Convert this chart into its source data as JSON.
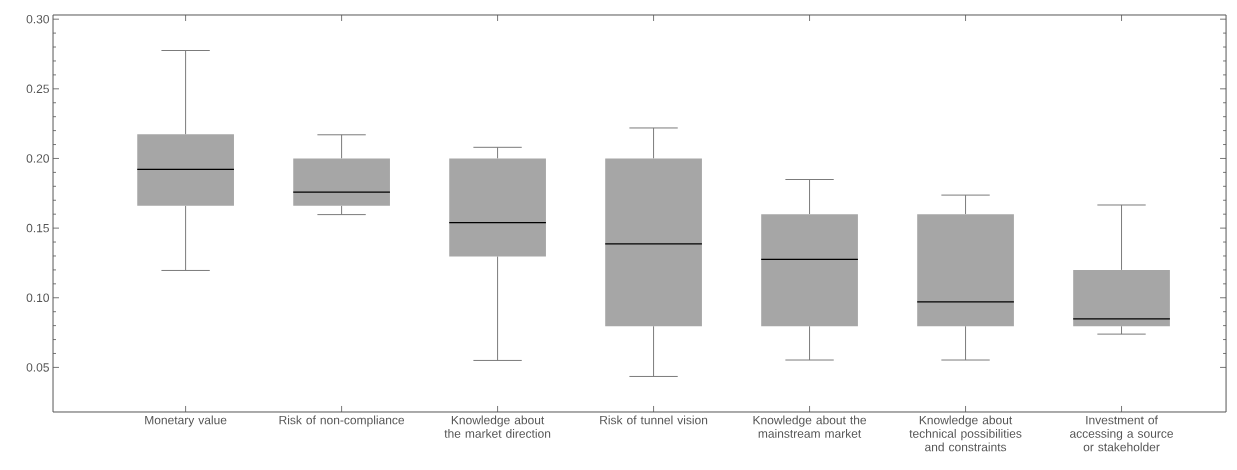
{
  "chart_data": {
    "type": "box",
    "color": "#a6a6a6",
    "categories": [
      "Monetary value",
      "Risk of non-compliance",
      "Knowledge about the market direction",
      "Risk of tunnel vision",
      "Knowledge about the mainstream market",
      "Knowledge about technical possibilities and constraints",
      "Investment of accessing a source or stakeholder"
    ],
    "boxes": [
      {
        "low": 0.1196,
        "q1": 0.166,
        "median": 0.1922,
        "q3": 0.2173,
        "high": 0.2775
      },
      {
        "low": 0.1597,
        "q1": 0.166,
        "median": 0.1758,
        "q3": 0.2,
        "high": 0.217
      },
      {
        "low": 0.055,
        "q1": 0.1297,
        "median": 0.154,
        "q3": 0.2,
        "high": 0.208
      },
      {
        "low": 0.0435,
        "q1": 0.0796,
        "median": 0.1387,
        "q3": 0.2,
        "high": 0.2219
      },
      {
        "low": 0.0553,
        "q1": 0.0796,
        "median": 0.1275,
        "q3": 0.16,
        "high": 0.1849
      },
      {
        "low": 0.0553,
        "q1": 0.0796,
        "median": 0.097,
        "q3": 0.16,
        "high": 0.1737
      },
      {
        "low": 0.0739,
        "q1": 0.0796,
        "median": 0.0849,
        "q3": 0.12,
        "high": 0.1666
      }
    ],
    "ylim": [
      0.018,
      0.303
    ],
    "yticks": [
      {
        "value": 0.05,
        "label": "0.05"
      },
      {
        "value": 0.1,
        "label": "0.10"
      },
      {
        "value": 0.15,
        "label": "0.15"
      },
      {
        "value": 0.2,
        "label": "0.20"
      },
      {
        "value": 0.25,
        "label": "0.25"
      },
      {
        "value": 0.3,
        "label": "0.30"
      }
    ]
  }
}
